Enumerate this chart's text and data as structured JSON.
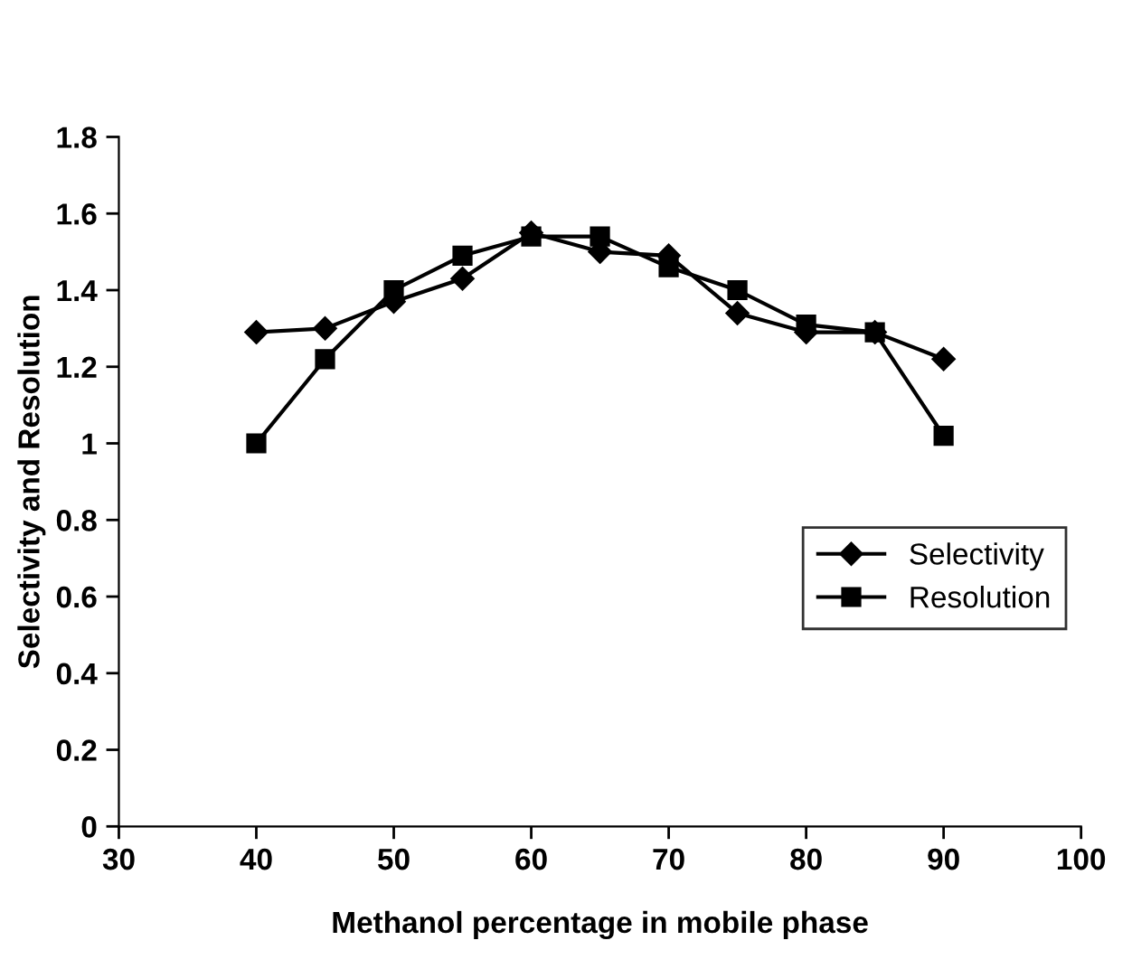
{
  "chart_data": {
    "type": "line",
    "xlabel": "Methanol percentage in mobile phase",
    "ylabel": "Selectivity and Resolution",
    "x": [
      40,
      45,
      50,
      55,
      60,
      65,
      70,
      75,
      80,
      85,
      90
    ],
    "series": [
      {
        "name": "Selectivity",
        "color": "#000000",
        "marker": "diamond",
        "values": [
          1.29,
          1.3,
          1.37,
          1.43,
          1.55,
          1.5,
          1.49,
          1.34,
          1.29,
          1.29,
          1.22
        ]
      },
      {
        "name": "Resolution",
        "color": "#000000",
        "marker": "square",
        "values": [
          1.0,
          1.22,
          1.4,
          1.49,
          1.54,
          1.54,
          1.46,
          1.4,
          1.31,
          1.29,
          1.02
        ]
      }
    ],
    "xlim": [
      30,
      100
    ],
    "xticks": [
      30,
      40,
      50,
      60,
      70,
      80,
      90,
      100
    ],
    "ylim": [
      0,
      1.8
    ],
    "yticks": [
      0,
      0.2,
      0.4,
      0.6,
      0.8,
      1,
      1.2,
      1.4,
      1.6,
      1.8
    ],
    "grid": false,
    "legend": "right",
    "line_style": "solid"
  }
}
